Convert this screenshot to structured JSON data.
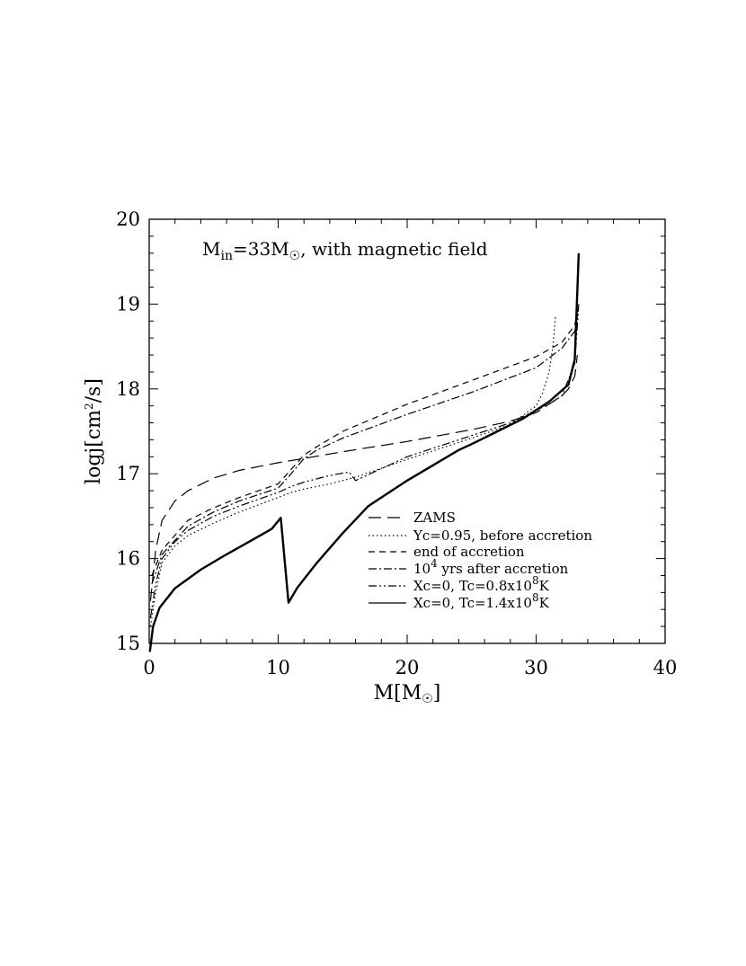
{
  "chart_data": {
    "type": "line",
    "xlim": [
      0,
      40
    ],
    "ylim": [
      15,
      20
    ],
    "x_ticks": [
      "0",
      "10",
      "20",
      "30",
      "40"
    ],
    "y_ticks": [
      "15",
      "16",
      "17",
      "18",
      "19",
      "20"
    ],
    "grid": false,
    "legend_position": "bottom-right",
    "annotation": {
      "prefix": "M",
      "sub": "in",
      "middle": "=33M",
      "sun": "☉",
      "suffix": ", with magnetic field"
    },
    "xlabel": {
      "prefix": "M[M",
      "sun": "☉",
      "suffix": "]"
    },
    "ylabel": {
      "prefix": "logj[cm",
      "sup": "2",
      "suffix": "/s]"
    },
    "series": [
      {
        "name": "ZAMS",
        "dash": "long",
        "x": [
          0.1,
          0.5,
          1,
          2,
          3,
          5,
          7,
          10,
          12,
          15,
          20,
          25,
          28,
          30,
          31,
          32,
          32.5,
          33,
          33.2
        ],
        "y": [
          15.5,
          16.1,
          16.45,
          16.68,
          16.8,
          16.95,
          17.04,
          17.13,
          17.18,
          17.26,
          17.38,
          17.52,
          17.62,
          17.72,
          17.82,
          17.92,
          18.0,
          18.15,
          18.4
        ]
      },
      {
        "name": "Yc=0.95, before accretion",
        "dash": "dot",
        "x": [
          0.1,
          0.5,
          1,
          2,
          3,
          5,
          7,
          10,
          11,
          12,
          14,
          15.5,
          16,
          20,
          25,
          28,
          30,
          30.5,
          31,
          31.3,
          31.5
        ],
        "y": [
          15.2,
          15.6,
          15.95,
          16.15,
          16.27,
          16.42,
          16.55,
          16.72,
          16.78,
          16.82,
          16.88,
          16.94,
          16.96,
          17.17,
          17.42,
          17.58,
          17.8,
          17.95,
          18.2,
          18.5,
          18.85
        ]
      },
      {
        "name": "end of accretion",
        "dash": "dash",
        "x": [
          0.2,
          1,
          3,
          5,
          7,
          10,
          11,
          12,
          13,
          15,
          20,
          25,
          30,
          32,
          33,
          33.3
        ],
        "y": [
          15.8,
          16.1,
          16.45,
          16.6,
          16.72,
          16.88,
          17.05,
          17.22,
          17.32,
          17.5,
          17.82,
          18.1,
          18.38,
          18.55,
          18.75,
          19.0
        ]
      },
      {
        "name": "10^4 yrs after accretion",
        "dash": "dashdot",
        "x": [
          0.2,
          1,
          3,
          5,
          7,
          10,
          11,
          12,
          13,
          15,
          20,
          25,
          30,
          32,
          33,
          33.3
        ],
        "y": [
          15.7,
          16.05,
          16.38,
          16.55,
          16.68,
          16.83,
          17.0,
          17.18,
          17.28,
          17.42,
          17.7,
          17.96,
          18.25,
          18.48,
          18.68,
          18.95
        ]
      },
      {
        "name": "Xc=0, Tc=0.8x10^8K",
        "dash": "dashdotdot",
        "x": [
          0.1,
          0.5,
          1,
          2,
          3,
          5,
          7,
          10,
          11,
          12,
          14,
          15.5,
          16,
          20,
          25,
          28,
          30,
          31,
          32,
          33,
          33.3
        ],
        "y": [
          15.3,
          15.7,
          16.0,
          16.2,
          16.33,
          16.5,
          16.62,
          16.78,
          16.85,
          16.9,
          16.98,
          17.02,
          16.92,
          17.2,
          17.45,
          17.6,
          17.75,
          17.82,
          17.92,
          18.3,
          19.0
        ]
      },
      {
        "name": "Xc=0, Tc=1.4x10^8K",
        "dash": "solid",
        "x": [
          0.05,
          0.3,
          0.8,
          2,
          4,
          6,
          8,
          9.5,
          10.2,
          10.8,
          11.5,
          13,
          15,
          17,
          20,
          22,
          24,
          25,
          27,
          29,
          31,
          32.5,
          33,
          33.3
        ],
        "y": [
          14.9,
          15.2,
          15.42,
          15.65,
          15.87,
          16.05,
          16.22,
          16.35,
          16.48,
          15.48,
          15.66,
          15.95,
          16.3,
          16.62,
          16.92,
          17.1,
          17.28,
          17.35,
          17.5,
          17.65,
          17.85,
          18.05,
          18.35,
          19.6
        ]
      }
    ]
  },
  "legend": [
    {
      "label": "ZAMS"
    },
    {
      "label": "Yc=0.95, before accretion"
    },
    {
      "label": "end of accretion"
    },
    {
      "base": "10",
      "sup": "4",
      "rest": " yrs after accretion"
    },
    {
      "base": "Xc=0, Tc=0.8x10",
      "sup": "8",
      "rest": "K"
    },
    {
      "base": "Xc=0, Tc=1.4x10",
      "sup": "8",
      "rest": "K"
    }
  ]
}
